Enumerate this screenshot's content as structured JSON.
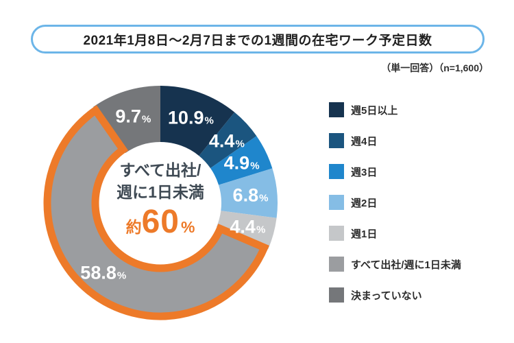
{
  "title": "2021年1月8日〜2月7日までの1週間の在宅ワーク予定日数",
  "subtitle": "（単一回答）（n=1,600）",
  "colors": {
    "background": "#FFFFFF",
    "title_border": "#6CB5E8",
    "accent_orange": "#ED7A29",
    "center_text": "#3E4953",
    "slice_label_text": "#FFFFFF"
  },
  "chart_data": {
    "type": "pie",
    "subtype": "donut",
    "title": "2021年1月8日〜2月7日までの1週間の在宅ワーク予定日数",
    "sample_note": "（単一回答）（n=1,600）",
    "unit": "%",
    "start_angle": "top",
    "direction": "clockwise",
    "legend_position": "right",
    "categories": [
      "週5日以上",
      "週4日",
      "週3日",
      "週2日",
      "週1日",
      "すべて出社/週に1日未満",
      "決まっていない"
    ],
    "values": [
      10.9,
      4.4,
      4.9,
      6.8,
      4.4,
      58.8,
      9.7
    ],
    "segment_colors": [
      "#16334F",
      "#1B557F",
      "#1F86CC",
      "#85BDE5",
      "#C5C7C9",
      "#9B9DA0",
      "#75777A"
    ],
    "highlight_index": 5,
    "highlight_stroke_color": "#ED7A29",
    "center_label": {
      "line1": "すべて出社/",
      "line2": "週に1日未満",
      "approx_prefix": "約",
      "approx_value": "60",
      "approx_unit": "%"
    }
  }
}
